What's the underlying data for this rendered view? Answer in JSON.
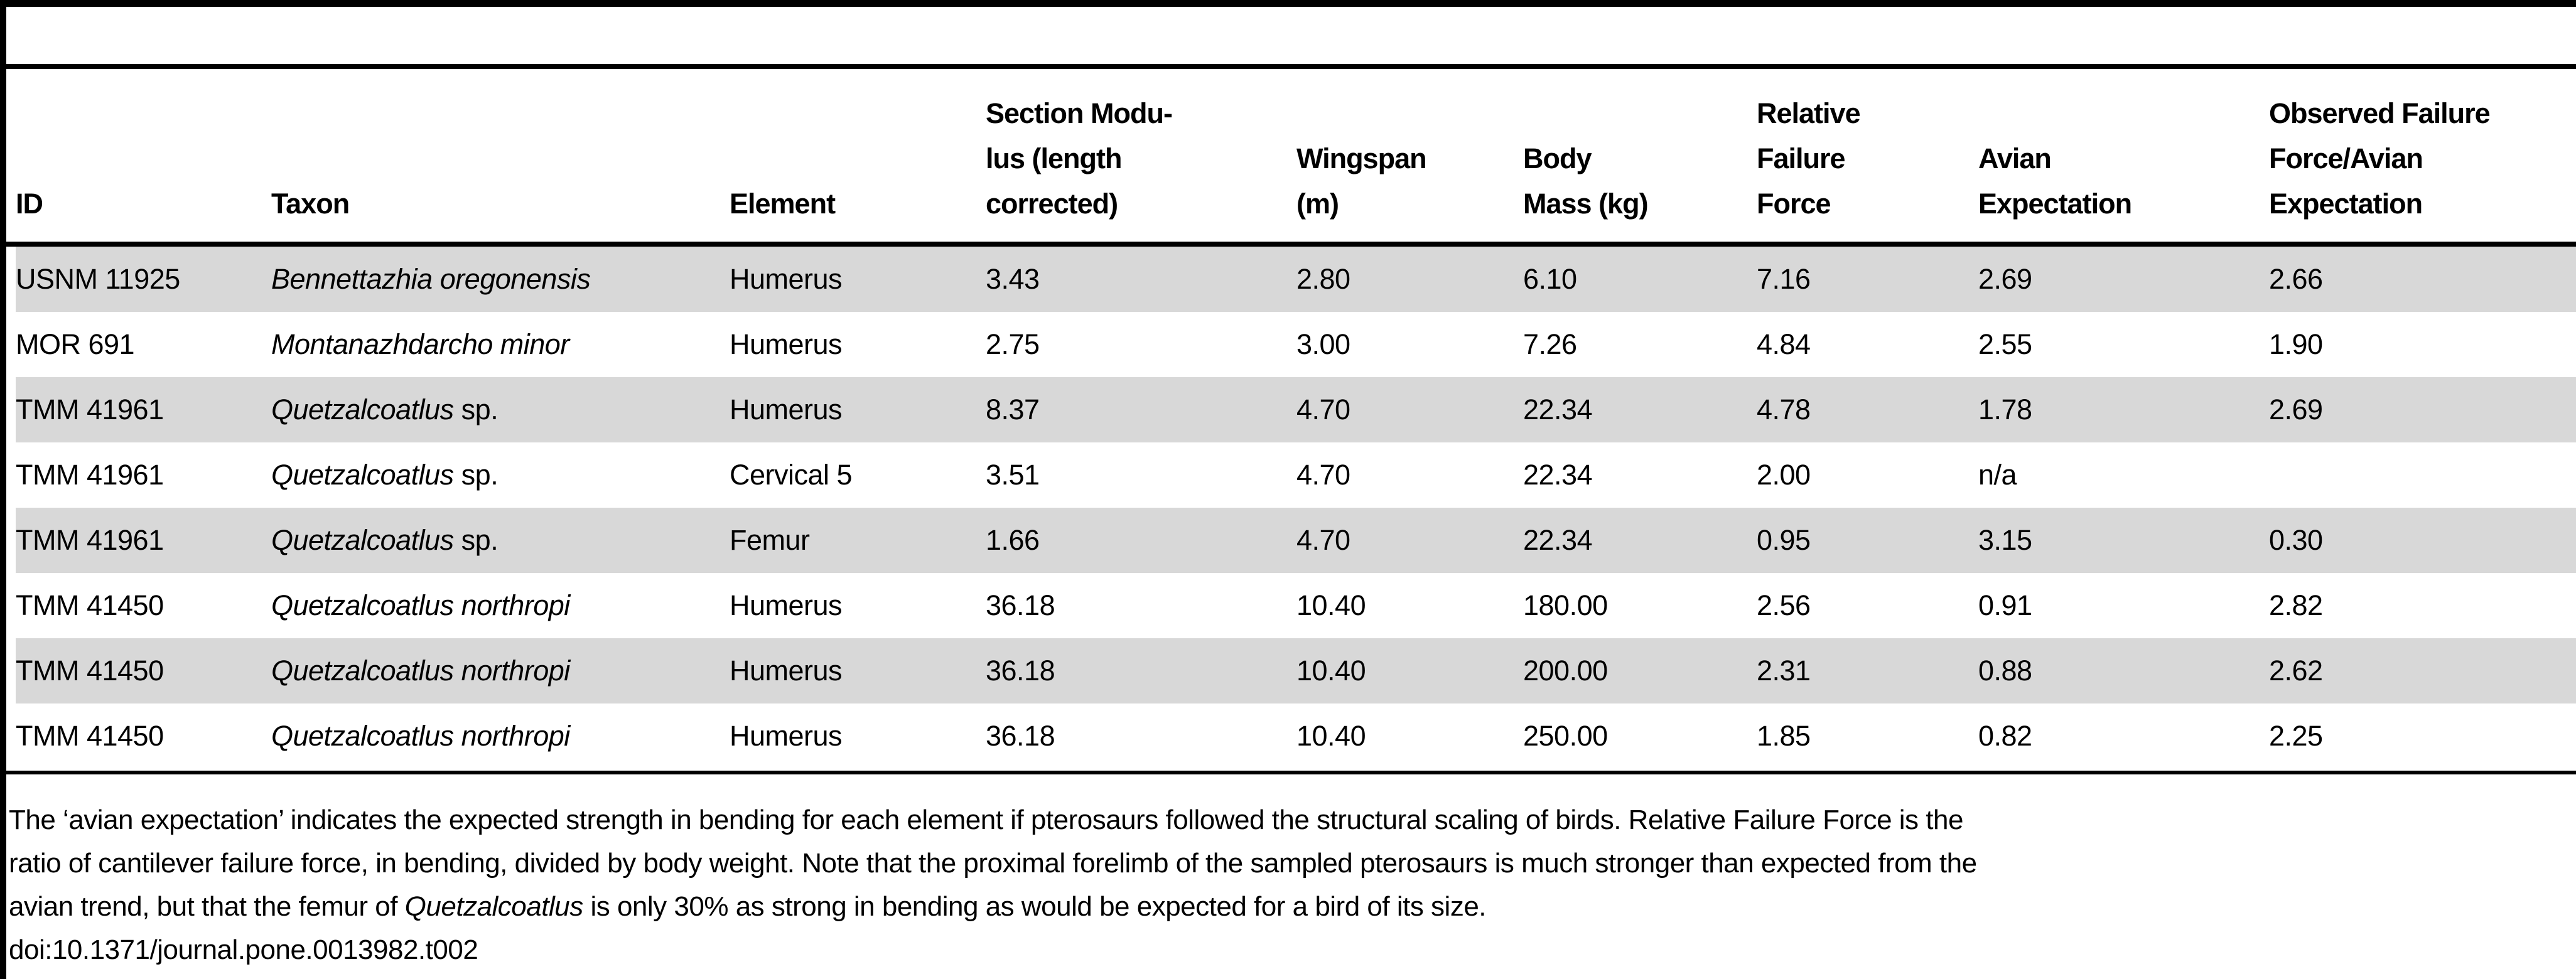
{
  "table": {
    "columns": [
      {
        "key": "id",
        "label_lines": [
          "ID"
        ]
      },
      {
        "key": "taxon",
        "label_lines": [
          "Taxon"
        ]
      },
      {
        "key": "element",
        "label_lines": [
          "Element"
        ]
      },
      {
        "key": "section_modulus",
        "label_lines": [
          "Section Modu-",
          "lus (length",
          "corrected)"
        ]
      },
      {
        "key": "wingspan_m",
        "label_lines": [
          "Wingspan",
          "(m)"
        ]
      },
      {
        "key": "body_mass_kg",
        "label_lines": [
          "Body",
          "Mass (kg)"
        ]
      },
      {
        "key": "relative_failure_force",
        "label_lines": [
          "Relative",
          "Failure",
          "Force"
        ]
      },
      {
        "key": "avian_expectation",
        "label_lines": [
          "Avian",
          "Expectation"
        ]
      },
      {
        "key": "observed_failure_ratio",
        "label_lines": [
          "Observed Failure",
          "Force/Avian",
          "Expectation"
        ]
      }
    ],
    "rows": [
      {
        "id": "USNM 11925",
        "taxon_italic": "Bennettazhia oregonensis",
        "taxon_plain": "",
        "element": "Humerus",
        "section_modulus": "3.43",
        "wingspan_m": "2.80",
        "body_mass_kg": "6.10",
        "relative_failure_force": "7.16",
        "avian_expectation": "2.69",
        "observed_failure_ratio": "2.66",
        "shaded": true
      },
      {
        "id": "MOR 691",
        "taxon_italic": "Montanazhdarcho minor",
        "taxon_plain": "",
        "element": "Humerus",
        "section_modulus": "2.75",
        "wingspan_m": "3.00",
        "body_mass_kg": "7.26",
        "relative_failure_force": "4.84",
        "avian_expectation": "2.55",
        "observed_failure_ratio": "1.90",
        "shaded": false
      },
      {
        "id": "TMM 41961",
        "taxon_italic": "Quetzalcoatlus",
        "taxon_plain": " sp.",
        "element": "Humerus",
        "section_modulus": "8.37",
        "wingspan_m": "4.70",
        "body_mass_kg": "22.34",
        "relative_failure_force": "4.78",
        "avian_expectation": "1.78",
        "observed_failure_ratio": "2.69",
        "shaded": true
      },
      {
        "id": "TMM 41961",
        "taxon_italic": "Quetzalcoatlus",
        "taxon_plain": " sp.",
        "element": "Cervical 5",
        "section_modulus": "3.51",
        "wingspan_m": "4.70",
        "body_mass_kg": "22.34",
        "relative_failure_force": "2.00",
        "avian_expectation": "n/a",
        "observed_failure_ratio": "",
        "shaded": false
      },
      {
        "id": "TMM 41961",
        "taxon_italic": "Quetzalcoatlus",
        "taxon_plain": " sp.",
        "element": "Femur",
        "section_modulus": "1.66",
        "wingspan_m": "4.70",
        "body_mass_kg": "22.34",
        "relative_failure_force": "0.95",
        "avian_expectation": "3.15",
        "observed_failure_ratio": "0.30",
        "shaded": true
      },
      {
        "id": "TMM 41450",
        "taxon_italic": "Quetzalcoatlus northropi",
        "taxon_plain": "",
        "element": "Humerus",
        "section_modulus": "36.18",
        "wingspan_m": "10.40",
        "body_mass_kg": "180.00",
        "relative_failure_force": "2.56",
        "avian_expectation": "0.91",
        "observed_failure_ratio": "2.82",
        "shaded": false
      },
      {
        "id": "TMM 41450",
        "taxon_italic": "Quetzalcoatlus northropi",
        "taxon_plain": "",
        "element": "Humerus",
        "section_modulus": "36.18",
        "wingspan_m": "10.40",
        "body_mass_kg": "200.00",
        "relative_failure_force": "2.31",
        "avian_expectation": "0.88",
        "observed_failure_ratio": "2.62",
        "shaded": true
      },
      {
        "id": "TMM 41450",
        "taxon_italic": "Quetzalcoatlus northropi",
        "taxon_plain": "",
        "element": "Humerus",
        "section_modulus": "36.18",
        "wingspan_m": "10.40",
        "body_mass_kg": "250.00",
        "relative_failure_force": "1.85",
        "avian_expectation": "0.82",
        "observed_failure_ratio": "2.25",
        "shaded": false
      }
    ]
  },
  "footnote": {
    "lines": [
      [
        {
          "text": "The ‘avian expectation’ indicates the expected strength in bending for each element if pterosaurs followed the structural scaling of birds. Relative Failure Force is the"
        }
      ],
      [
        {
          "text": "ratio of cantilever failure force, in bending, divided by body weight. Note that the proximal forelimb of the sampled pterosaurs is much stronger than expected from the"
        }
      ],
      [
        {
          "text": "avian trend, but that the femur of "
        },
        {
          "text": "Quetzalcoatlus",
          "italic": true
        },
        {
          "text": " is only 30% as strong in bending as would be expected for a bird of its size."
        }
      ]
    ],
    "doi": "doi:10.1371/journal.pone.0013982.t002"
  },
  "colors": {
    "shaded_row": "#d8d8d8",
    "rule": "#000000",
    "text": "#000000",
    "background": "#ffffff"
  }
}
